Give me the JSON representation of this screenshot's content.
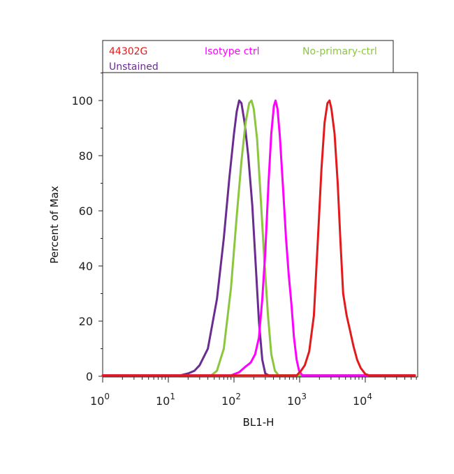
{
  "chart_data": {
    "type": "line",
    "xlabel": "BL1-H",
    "ylabel": "Percent of Max",
    "xscale": "log",
    "xlim": [
      1,
      60000
    ],
    "ylim": [
      0,
      110
    ],
    "x_ticks": [
      {
        "base": "10",
        "exp": "0",
        "value": 1
      },
      {
        "base": "10",
        "exp": "1",
        "value": 10
      },
      {
        "base": "10",
        "exp": "2",
        "value": 100
      },
      {
        "base": "10",
        "exp": "3",
        "value": 1000
      },
      {
        "base": "10",
        "exp": "4",
        "value": 10000
      }
    ],
    "y_ticks": [
      {
        "label": "0",
        "value": 0
      },
      {
        "label": "20",
        "value": 20
      },
      {
        "label": "40",
        "value": 40
      },
      {
        "label": "60",
        "value": 60
      },
      {
        "label": "80",
        "value": 80
      },
      {
        "label": "100",
        "value": 100
      }
    ],
    "grid": false,
    "legend_position": "top",
    "series": [
      {
        "name": "Unstained",
        "color": "#6a2c91",
        "points": [
          [
            1,
            0.3
          ],
          [
            15,
            0.3
          ],
          [
            20,
            1
          ],
          [
            25,
            2
          ],
          [
            30,
            4
          ],
          [
            40,
            10
          ],
          [
            55,
            28
          ],
          [
            70,
            50
          ],
          [
            85,
            72
          ],
          [
            100,
            88
          ],
          [
            110,
            96
          ],
          [
            120,
            100
          ],
          [
            130,
            99
          ],
          [
            145,
            92
          ],
          [
            165,
            80
          ],
          [
            190,
            62
          ],
          [
            215,
            40
          ],
          [
            240,
            20
          ],
          [
            270,
            6
          ],
          [
            300,
            1
          ],
          [
            340,
            0.3
          ],
          [
            60000,
            0.3
          ]
        ]
      },
      {
        "name": "No-primary-ctrl",
        "color": "#8cc63f",
        "points": [
          [
            1,
            0.3
          ],
          [
            45,
            0.3
          ],
          [
            55,
            2
          ],
          [
            70,
            10
          ],
          [
            90,
            32
          ],
          [
            110,
            58
          ],
          [
            130,
            78
          ],
          [
            150,
            92
          ],
          [
            170,
            99
          ],
          [
            185,
            100
          ],
          [
            200,
            97
          ],
          [
            225,
            86
          ],
          [
            255,
            65
          ],
          [
            290,
            42
          ],
          [
            330,
            22
          ],
          [
            370,
            8
          ],
          [
            420,
            2
          ],
          [
            480,
            0.3
          ],
          [
            60000,
            0.3
          ]
        ]
      },
      {
        "name": "Isotype ctrl",
        "color": "#ff00ff",
        "points": [
          [
            1,
            0.3
          ],
          [
            90,
            0.3
          ],
          [
            120,
            1.5
          ],
          [
            150,
            3.5
          ],
          [
            180,
            5
          ],
          [
            210,
            8
          ],
          [
            240,
            14
          ],
          [
            270,
            28
          ],
          [
            300,
            45
          ],
          [
            335,
            70
          ],
          [
            370,
            88
          ],
          [
            405,
            98
          ],
          [
            430,
            100
          ],
          [
            460,
            97
          ],
          [
            500,
            87
          ],
          [
            560,
            68
          ],
          [
            620,
            50
          ],
          [
            680,
            37
          ],
          [
            750,
            26
          ],
          [
            820,
            14
          ],
          [
            900,
            6
          ],
          [
            980,
            2
          ],
          [
            1100,
            0.3
          ],
          [
            60000,
            0.3
          ]
        ]
      },
      {
        "name": "44302G",
        "color": "#e31a1c",
        "points": [
          [
            1,
            0.3
          ],
          [
            900,
            0.3
          ],
          [
            1050,
            2
          ],
          [
            1200,
            4
          ],
          [
            1400,
            9
          ],
          [
            1650,
            22
          ],
          [
            1900,
            50
          ],
          [
            2150,
            75
          ],
          [
            2400,
            92
          ],
          [
            2650,
            99
          ],
          [
            2850,
            100
          ],
          [
            3050,
            97
          ],
          [
            3400,
            88
          ],
          [
            3800,
            70
          ],
          [
            4200,
            48
          ],
          [
            4600,
            30
          ],
          [
            5200,
            22
          ],
          [
            5800,
            17
          ],
          [
            6600,
            11
          ],
          [
            7500,
            6
          ],
          [
            8500,
            3
          ],
          [
            10000,
            0.8
          ],
          [
            11500,
            0.3
          ],
          [
            60000,
            0.3
          ]
        ]
      }
    ],
    "legend": [
      {
        "label": "44302G",
        "color": "#e31a1c"
      },
      {
        "label": "Isotype ctrl",
        "color": "#ff00ff"
      },
      {
        "label": "No-primary-ctrl",
        "color": "#8cc63f"
      },
      {
        "label": "Unstained",
        "color": "#6a2c91"
      }
    ]
  }
}
